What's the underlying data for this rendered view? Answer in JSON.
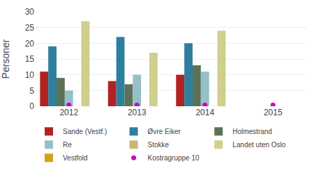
{
  "chart_data": {
    "type": "bar",
    "categories": [
      "2012",
      "2013",
      "2014",
      "2015"
    ],
    "series": [
      {
        "name": "Sande (Vestf.)",
        "color": "#b22222",
        "values": [
          11,
          8,
          10,
          0
        ]
      },
      {
        "name": "Øvre Eiker",
        "color": "#2e7f9e",
        "values": [
          19,
          22,
          20,
          0
        ]
      },
      {
        "name": "Holmestrand",
        "color": "#5a7358",
        "values": [
          9,
          7,
          13,
          0
        ]
      },
      {
        "name": "Re",
        "color": "#96bfc8",
        "values": [
          5,
          10,
          11,
          0
        ]
      },
      {
        "name": "Stokke",
        "color": "#c8b96e",
        "values": [
          0,
          0,
          0,
          0
        ]
      },
      {
        "name": "Landet uten Oslo",
        "color": "#d0cf8c",
        "values": [
          27,
          17,
          24,
          0
        ]
      },
      {
        "name": "Vestfold",
        "color": "#d4a017",
        "values": [
          0,
          0,
          0,
          0
        ]
      },
      {
        "name": "Kostragruppe 10",
        "color": "#cc00cc",
        "values": [
          0.4,
          0.4,
          0.4,
          0.4
        ],
        "type": "scatter",
        "marker": "circle"
      }
    ],
    "ylabel": "Personer",
    "ylim": [
      0,
      30
    ],
    "yticks": [
      0,
      5,
      10,
      15,
      20,
      25,
      30
    ],
    "grid": true,
    "legend": "bottom"
  }
}
